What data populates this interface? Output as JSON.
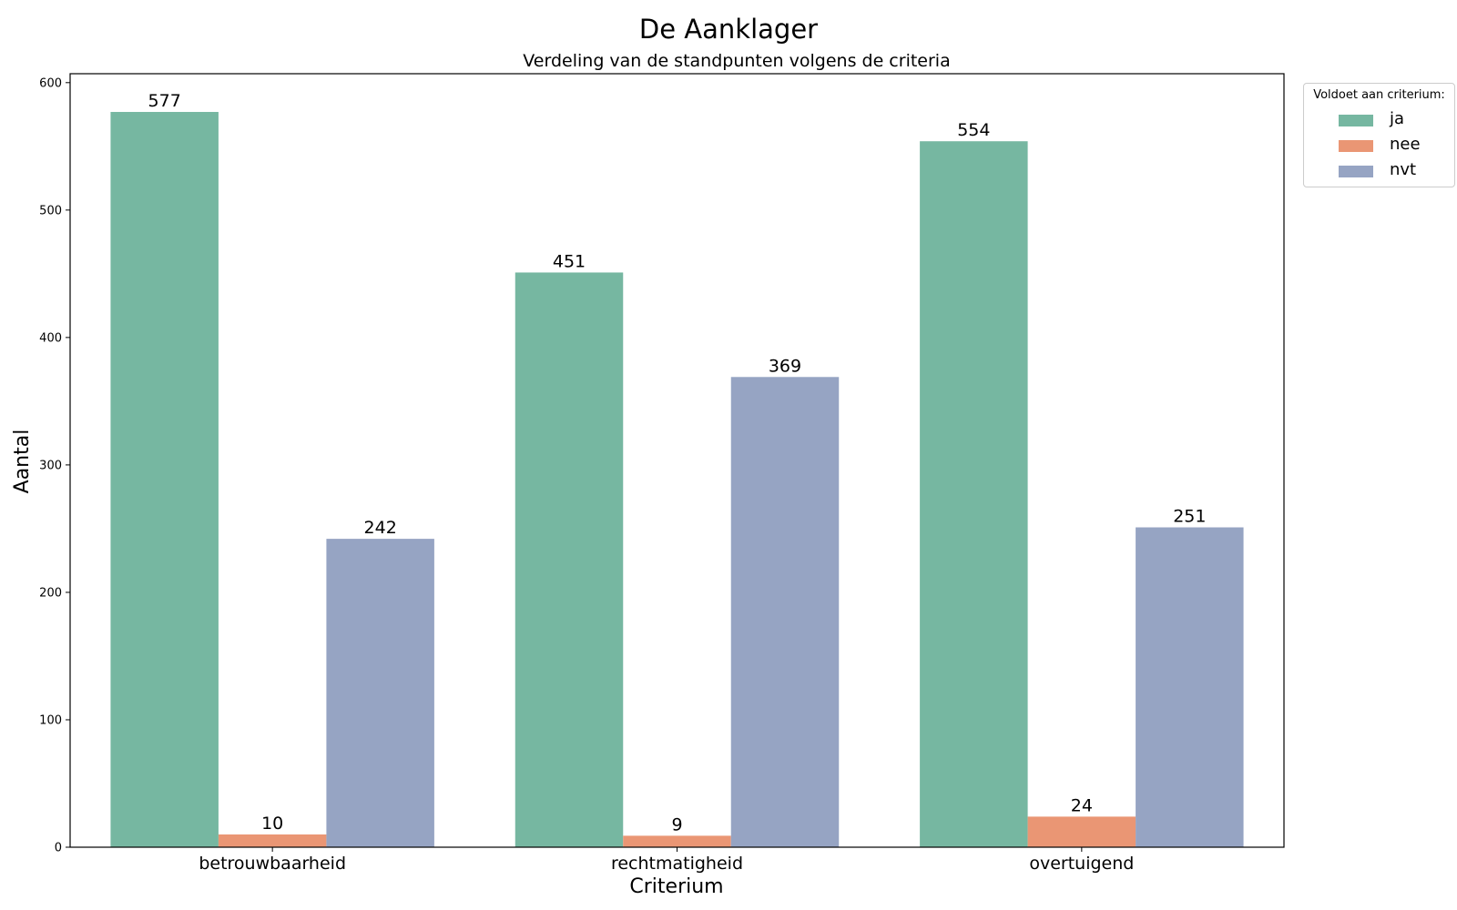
{
  "chart_data": {
    "type": "bar",
    "title": "De Aanklager",
    "subtitle": "Verdeling van de standpunten volgens de criteria",
    "xlabel": "Criterium",
    "ylabel": "Aantal",
    "categories": [
      "betrouwbaarheid",
      "rechtmatigheid",
      "overtuigend"
    ],
    "series": [
      {
        "name": "ja",
        "values": [
          577,
          451,
          554
        ],
        "color": "#76b7a1"
      },
      {
        "name": "nee",
        "values": [
          10,
          9,
          24
        ],
        "color": "#ea9674"
      },
      {
        "name": "nvt",
        "values": [
          242,
          369,
          251
        ],
        "color": "#96a4c3"
      }
    ],
    "ylim": [
      0,
      607
    ],
    "yticks": [
      0,
      100,
      200,
      300,
      400,
      500,
      600
    ],
    "grid": false,
    "legend": {
      "title": "Voldoet aan criterium:",
      "placement": "outside-top-right"
    },
    "data_labels": true
  }
}
